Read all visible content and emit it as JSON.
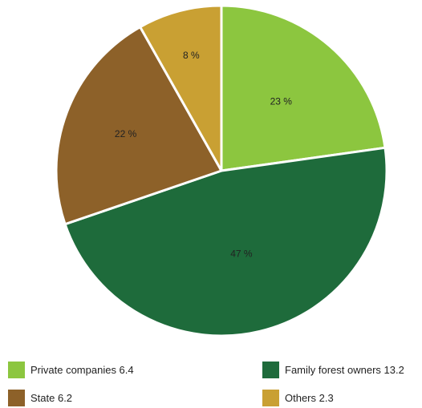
{
  "chart_data": {
    "type": "pie",
    "slices": [
      {
        "label": "Private companies 6.4",
        "value": 6.4,
        "percent_label": "23 %",
        "color": "#8CC63F"
      },
      {
        "label": "Family forest owners 13.2",
        "value": 13.2,
        "percent_label": "47 %",
        "color": "#1E6B3B"
      },
      {
        "label": "State 6.2",
        "value": 6.2,
        "percent_label": "22 %",
        "color": "#8D6129"
      },
      {
        "label": "Others 2.3",
        "value": 2.3,
        "percent_label": "8 %",
        "color": "#C9A033"
      }
    ],
    "legend": {
      "items": [
        {
          "label": "Private companies 6.4",
          "color": "#8CC63F"
        },
        {
          "label": "Family forest owners 13.2",
          "color": "#1E6B3B"
        },
        {
          "label": "State 6.2",
          "color": "#8D6129"
        },
        {
          "label": "Others 2.3",
          "color": "#C9A033"
        }
      ]
    }
  }
}
